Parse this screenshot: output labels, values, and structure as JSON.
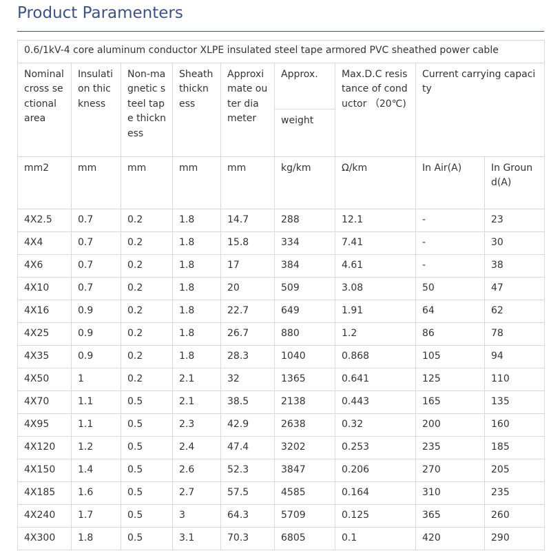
{
  "header": {
    "title": "Product Paramenters"
  },
  "table": {
    "caption": "0.6/1kV-4 core aluminum conductor XLPE insulated steel tape armored PVC sheathed power cable",
    "head": [
      "Nominal cross sectional area",
      "Insulation thickness",
      "Non-magnetic steel tape thickness",
      "Sheath thickness",
      "Approximate outer diameter",
      "Approx.",
      "Max.D.C resistance of conductor （20℃)",
      "Current carrying capacity",
      "weight"
    ],
    "units": [
      "mm2",
      "mm",
      "mm",
      "mm",
      "mm",
      "kg/km",
      "Ω/km",
      "In Air(A)",
      "In Ground(A)"
    ],
    "rows": [
      [
        "4X2.5",
        "0.7",
        "0.2",
        "1.8",
        "14.7",
        "288",
        "12.1",
        "-",
        "23"
      ],
      [
        "4X4",
        "0.7",
        "0.2",
        "1.8",
        "15.8",
        "334",
        "7.41",
        "-",
        "30"
      ],
      [
        "4X6",
        "0.7",
        "0.2",
        "1.8",
        "17",
        "384",
        "4.61",
        "-",
        "38"
      ],
      [
        "4X10",
        "0.7",
        "0.2",
        "1.8",
        "20",
        "509",
        "3.08",
        "50",
        "47"
      ],
      [
        "4X16",
        "0.9",
        "0.2",
        "1.8",
        "22.7",
        "649",
        "1.91",
        "64",
        "62"
      ],
      [
        "4X25",
        "0.9",
        "0.2",
        "1.8",
        "26.7",
        "880",
        "1.2",
        "86",
        "78"
      ],
      [
        "4X35",
        "0.9",
        "0.2",
        "1.8",
        "28.3",
        "1040",
        "0.868",
        "105",
        "94"
      ],
      [
        "4X50",
        "1",
        "0.2",
        "2.1",
        "32",
        "1365",
        "0.641",
        "125",
        "110"
      ],
      [
        "4X70",
        "1.1",
        "0.5",
        "2.1",
        "38.5",
        "2138",
        "0.443",
        "165",
        "135"
      ],
      [
        "4X95",
        "1.1",
        "0.5",
        "2.3",
        "42.9",
        "2638",
        "0.32",
        "200",
        "160"
      ],
      [
        "4X120",
        "1.2",
        "0.5",
        "2.4",
        "47.4",
        "3202",
        "0.253",
        "235",
        "185"
      ],
      [
        "4X150",
        "1.4",
        "0.5",
        "2.6",
        "52.3",
        "3847",
        "0.206",
        "270",
        "205"
      ],
      [
        "4X185",
        "1.6",
        "0.5",
        "2.7",
        "57.5",
        "4585",
        "0.164",
        "310",
        "235"
      ],
      [
        "4X240",
        "1.7",
        "0.5",
        "3",
        "64.3",
        "5709",
        "0.125",
        "365",
        "260"
      ],
      [
        "4X300",
        "1.8",
        "0.5",
        "3.1",
        "70.3",
        "6805",
        "0.1",
        "420",
        "290"
      ]
    ]
  }
}
